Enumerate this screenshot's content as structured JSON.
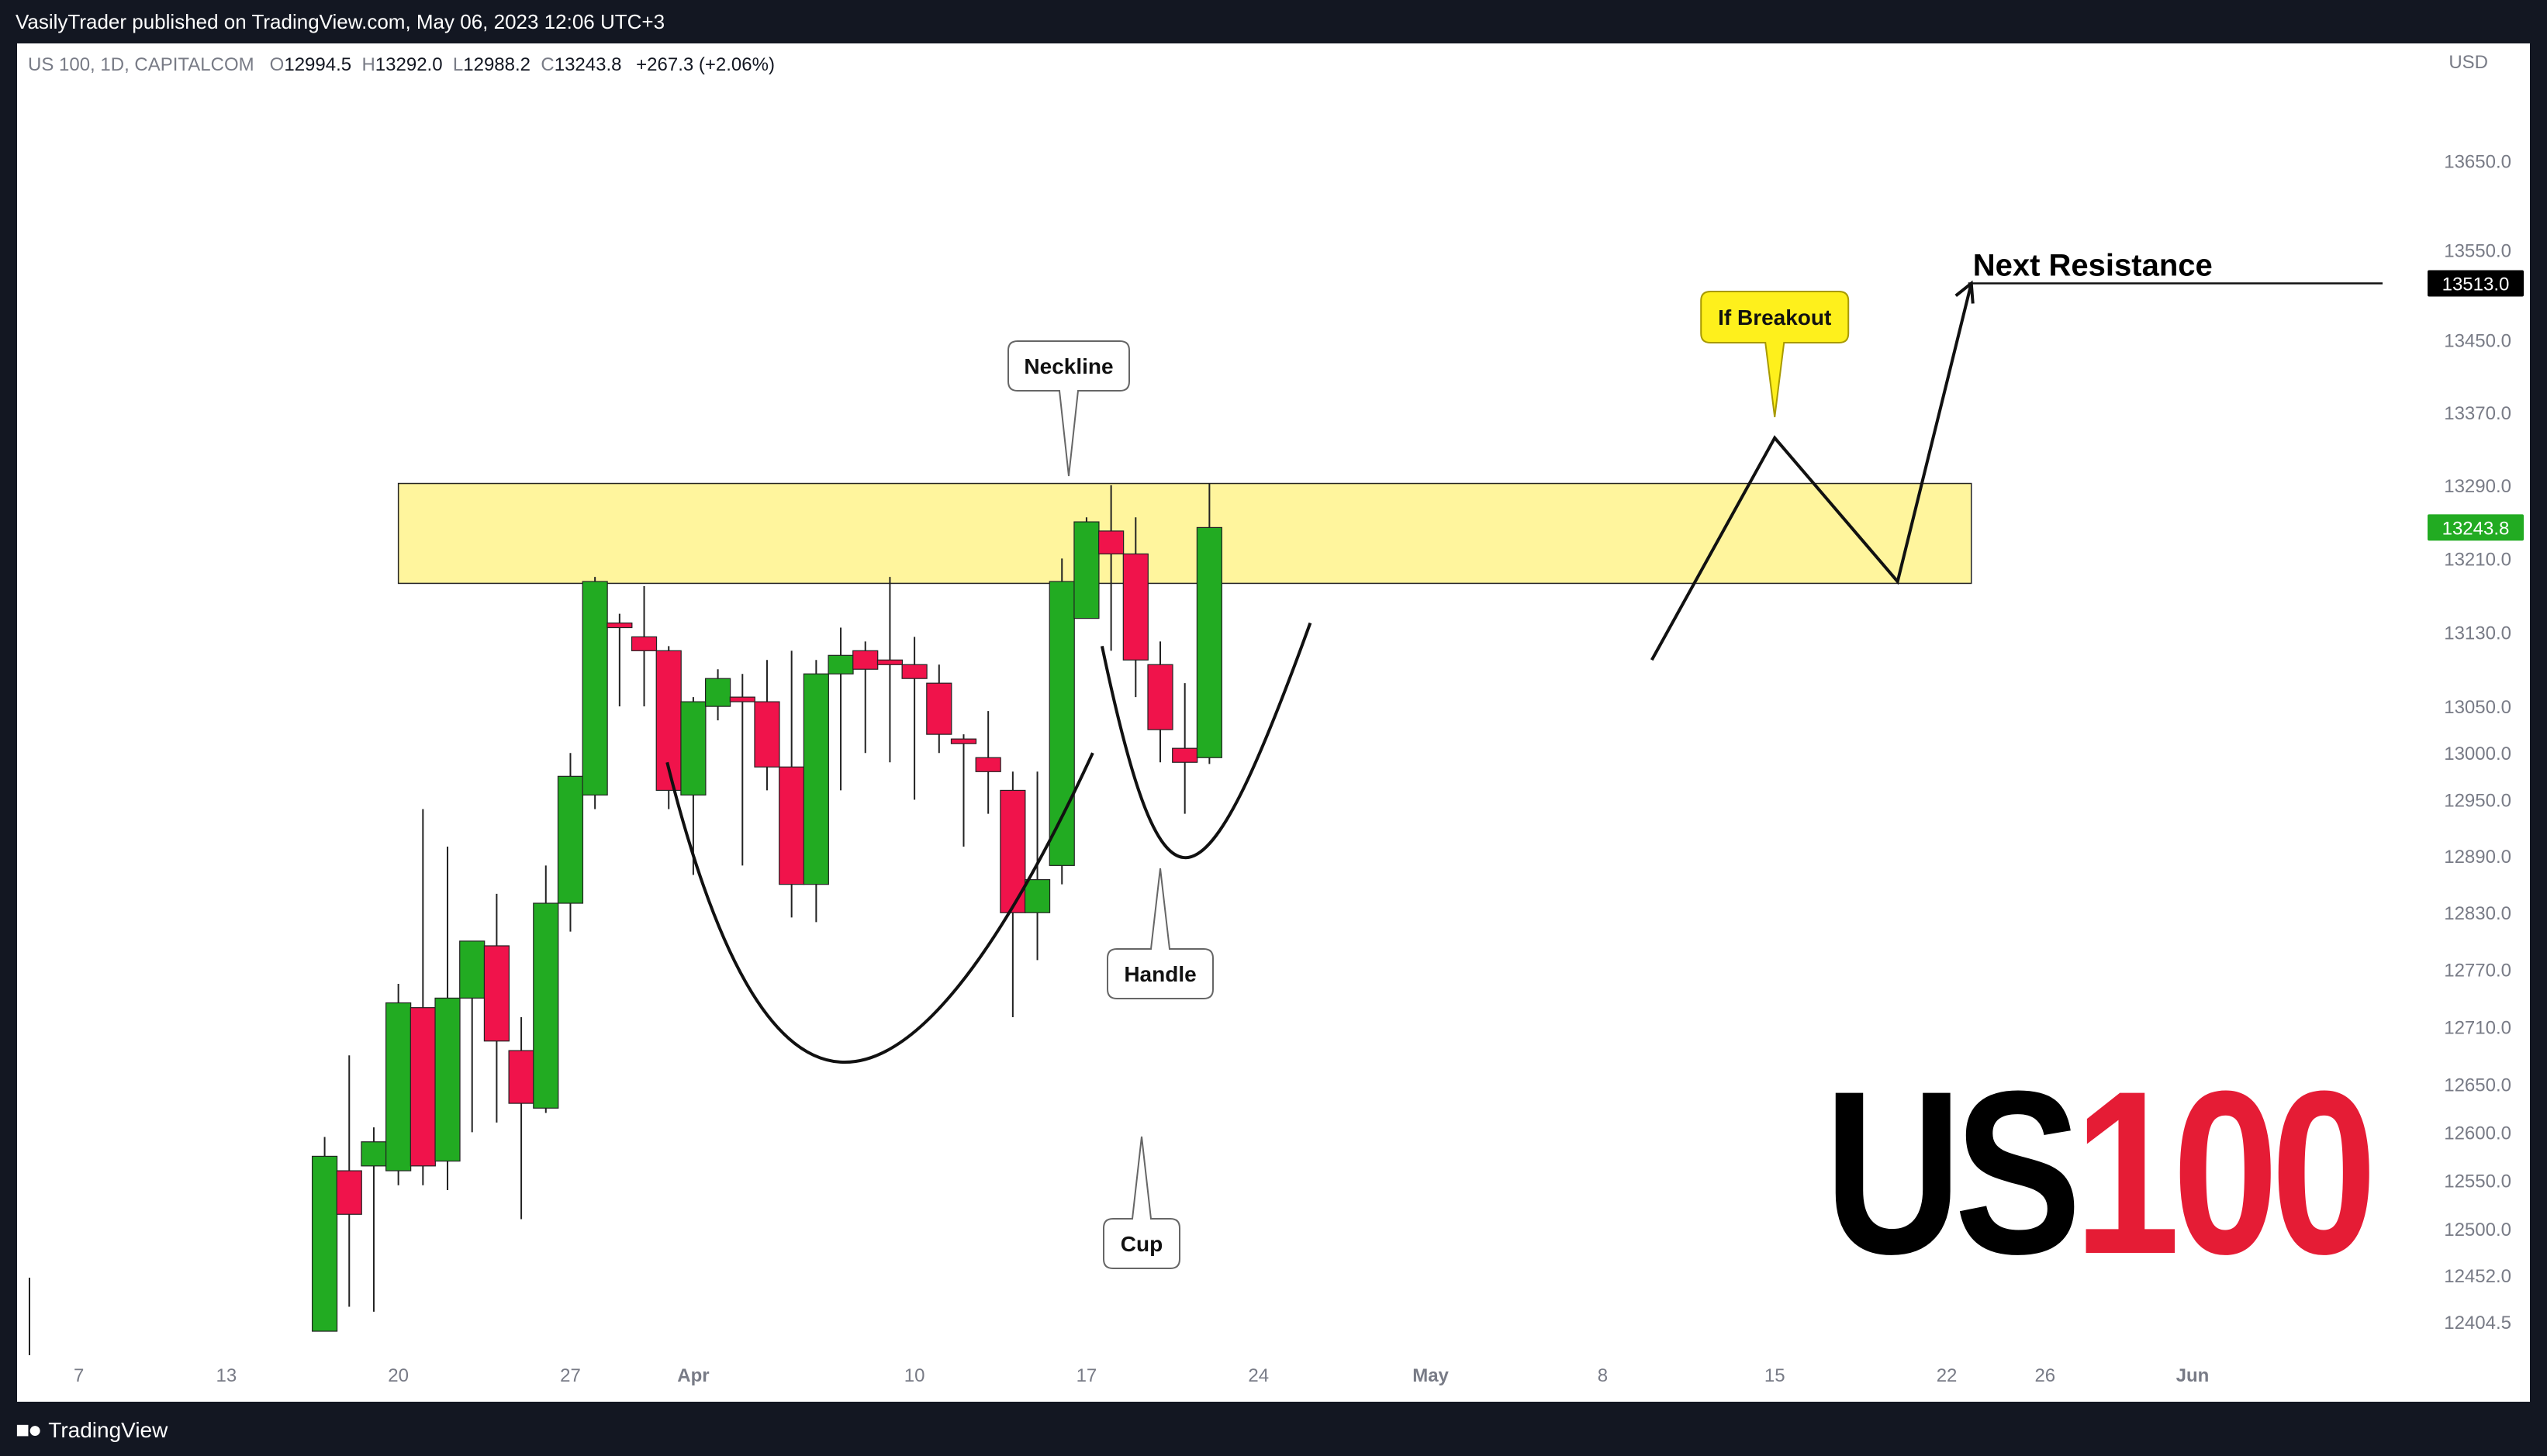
{
  "header": {
    "publisher_line": "VasilyTrader published on TradingView.com, May 06, 2023 12:06 UTC+3"
  },
  "footer": {
    "brand_name": "TradingView"
  },
  "legend": {
    "symbol": "US 100, 1D, CAPITALCOM",
    "open_label": "O",
    "open": "12994.5",
    "high_label": "H",
    "high": "13292.0",
    "low_label": "L",
    "low": "12988.2",
    "close_label": "C",
    "close": "13243.8",
    "change": "+267.3 (+2.06%)"
  },
  "chart_data": {
    "type": "candlestick",
    "currency_label": "USD",
    "y_scale": "log",
    "ylim": [
      12380,
      13760
    ],
    "y_ticks": [
      "13650.0",
      "13550.0",
      "13450.0",
      "13370.0",
      "13290.0",
      "13210.0",
      "13130.0",
      "13050.0",
      "13000.0",
      "12950.0",
      "12890.0",
      "12830.0",
      "12770.0",
      "12710.0",
      "12650.0",
      "12600.0",
      "12550.0",
      "12500.0",
      "12452.0",
      "12404.5"
    ],
    "x_range": [
      "2023-03-06",
      "2023-06-04"
    ],
    "x_ticks": [
      {
        "date": "2023-03-07",
        "label": "7"
      },
      {
        "date": "2023-03-13",
        "label": "13"
      },
      {
        "date": "2023-03-20",
        "label": "20"
      },
      {
        "date": "2023-03-27",
        "label": "27"
      },
      {
        "date": "2023-04-01",
        "label": "Apr"
      },
      {
        "date": "2023-04-10",
        "label": "10"
      },
      {
        "date": "2023-04-17",
        "label": "17"
      },
      {
        "date": "2023-04-24",
        "label": "24"
      },
      {
        "date": "2023-05-01",
        "label": "May"
      },
      {
        "date": "2023-05-08",
        "label": "8"
      },
      {
        "date": "2023-05-15",
        "label": "15"
      },
      {
        "date": "2023-05-22",
        "label": "22"
      },
      {
        "date": "2023-05-26",
        "label": "26"
      },
      {
        "date": "2023-06-01",
        "label": "Jun"
      }
    ],
    "colors": {
      "up": "#22ab22",
      "down": "#f0134b",
      "wick": "#222222",
      "zone": "#fff59d",
      "last_price_bg": "#22ab22",
      "resistance_bg": "#000000"
    },
    "candles": [
      {
        "date": "2023-03-17",
        "open": 12395,
        "high": 12595,
        "low": 12395,
        "close": 12575
      },
      {
        "date": "2023-03-18",
        "open": 12560,
        "high": 12680,
        "low": 12420,
        "close": 12515
      },
      {
        "date": "2023-03-19",
        "open": 12565,
        "high": 12605,
        "low": 12415,
        "close": 12590
      },
      {
        "date": "2023-03-20",
        "open": 12560,
        "high": 12755,
        "low": 12545,
        "close": 12735
      },
      {
        "date": "2023-03-21",
        "open": 12730,
        "high": 12940,
        "low": 12545,
        "close": 12565
      },
      {
        "date": "2023-03-22",
        "open": 12570,
        "high": 12900,
        "low": 12540,
        "close": 12740
      },
      {
        "date": "2023-03-23",
        "open": 12740,
        "high": 12800,
        "low": 12600,
        "close": 12800
      },
      {
        "date": "2023-03-24",
        "open": 12795,
        "high": 12850,
        "low": 12610,
        "close": 12695
      },
      {
        "date": "2023-03-25",
        "open": 12685,
        "high": 12720,
        "low": 12510,
        "close": 12630
      },
      {
        "date": "2023-03-26",
        "open": 12625,
        "high": 12880,
        "low": 12620,
        "close": 12840
      },
      {
        "date": "2023-03-27",
        "open": 12840,
        "high": 13000,
        "low": 12810,
        "close": 12975
      },
      {
        "date": "2023-03-28",
        "open": 12955,
        "high": 13190,
        "low": 12940,
        "close": 13185
      },
      {
        "date": "2023-03-29",
        "open": 13140,
        "high": 13150,
        "low": 13050,
        "close": 13135
      },
      {
        "date": "2023-03-30",
        "open": 13125,
        "high": 13180,
        "low": 13050,
        "close": 13110
      },
      {
        "date": "2023-03-31",
        "open": 13110,
        "high": 13115,
        "low": 12940,
        "close": 12960
      },
      {
        "date": "2023-04-01",
        "open": 12955,
        "high": 13060,
        "low": 12870,
        "close": 13055
      },
      {
        "date": "2023-04-02",
        "open": 13050,
        "high": 13090,
        "low": 13035,
        "close": 13080
      },
      {
        "date": "2023-04-03",
        "open": 13060,
        "high": 13085,
        "low": 12880,
        "close": 13055
      },
      {
        "date": "2023-04-04",
        "open": 13055,
        "high": 13100,
        "low": 12960,
        "close": 12985
      },
      {
        "date": "2023-04-05",
        "open": 12985,
        "high": 13110,
        "low": 12825,
        "close": 12860
      },
      {
        "date": "2023-04-06",
        "open": 12860,
        "high": 13100,
        "low": 12820,
        "close": 13085
      },
      {
        "date": "2023-04-07",
        "open": 13085,
        "high": 13135,
        "low": 12960,
        "close": 13105
      },
      {
        "date": "2023-04-08",
        "open": 13110,
        "high": 13120,
        "low": 13000,
        "close": 13090
      },
      {
        "date": "2023-04-09",
        "open": 13100,
        "high": 13190,
        "low": 12990,
        "close": 13095
      },
      {
        "date": "2023-04-10",
        "open": 13095,
        "high": 13125,
        "low": 12950,
        "close": 13080
      },
      {
        "date": "2023-04-11",
        "open": 13075,
        "high": 13095,
        "low": 13000,
        "close": 13020
      },
      {
        "date": "2023-04-12",
        "open": 13015,
        "high": 13020,
        "low": 12900,
        "close": 13010
      },
      {
        "date": "2023-04-13",
        "open": 12995,
        "high": 13045,
        "low": 12935,
        "close": 12980
      },
      {
        "date": "2023-04-14",
        "open": 12960,
        "high": 12980,
        "low": 12720,
        "close": 12830
      },
      {
        "date": "2023-04-15",
        "open": 12830,
        "high": 12980,
        "low": 12780,
        "close": 12865
      },
      {
        "date": "2023-04-16",
        "open": 12880,
        "high": 13210,
        "low": 12860,
        "close": 13185
      },
      {
        "date": "2023-04-17",
        "open": 13145,
        "high": 13255,
        "low": 13145,
        "close": 13250
      },
      {
        "date": "2023-04-18",
        "open": 13240,
        "high": 13290,
        "low": 13110,
        "close": 13215
      },
      {
        "date": "2023-04-19",
        "open": 13215,
        "high": 13255,
        "low": 13060,
        "close": 13100
      },
      {
        "date": "2023-04-20",
        "open": 13095,
        "high": 13120,
        "low": 12990,
        "close": 13025
      },
      {
        "date": "2023-04-21",
        "open": 13005,
        "high": 13075,
        "low": 12935,
        "close": 12990
      },
      {
        "date": "2023-04-22",
        "open": 12995,
        "high": 13292,
        "low": 12988.2,
        "close": 13243.8
      }
    ],
    "zones": [
      {
        "label": "Neckline",
        "from_date": "2023-03-20",
        "to_date": "2023-05-23",
        "low": 13183,
        "high": 13292
      }
    ],
    "annotations": [
      "Neckline",
      "Cup",
      "Handle",
      "If Breakout",
      "Next Resistance"
    ],
    "projection": [
      {
        "date": "2023-05-10",
        "price": 13100
      },
      {
        "date": "2023-05-15",
        "price": 13342
      },
      {
        "date": "2023-05-20",
        "price": 13185
      },
      {
        "date": "2023-05-23",
        "price": 13513
      }
    ],
    "resistance": {
      "label": "Next Resistance",
      "price": 13513,
      "price_label": "13513.0"
    },
    "last_price": {
      "price": 13243.8,
      "label": "13243.8"
    },
    "watermark": {
      "part1": "US",
      "part2": "100",
      "color1": "#000000",
      "color2": "#e51c35"
    }
  }
}
